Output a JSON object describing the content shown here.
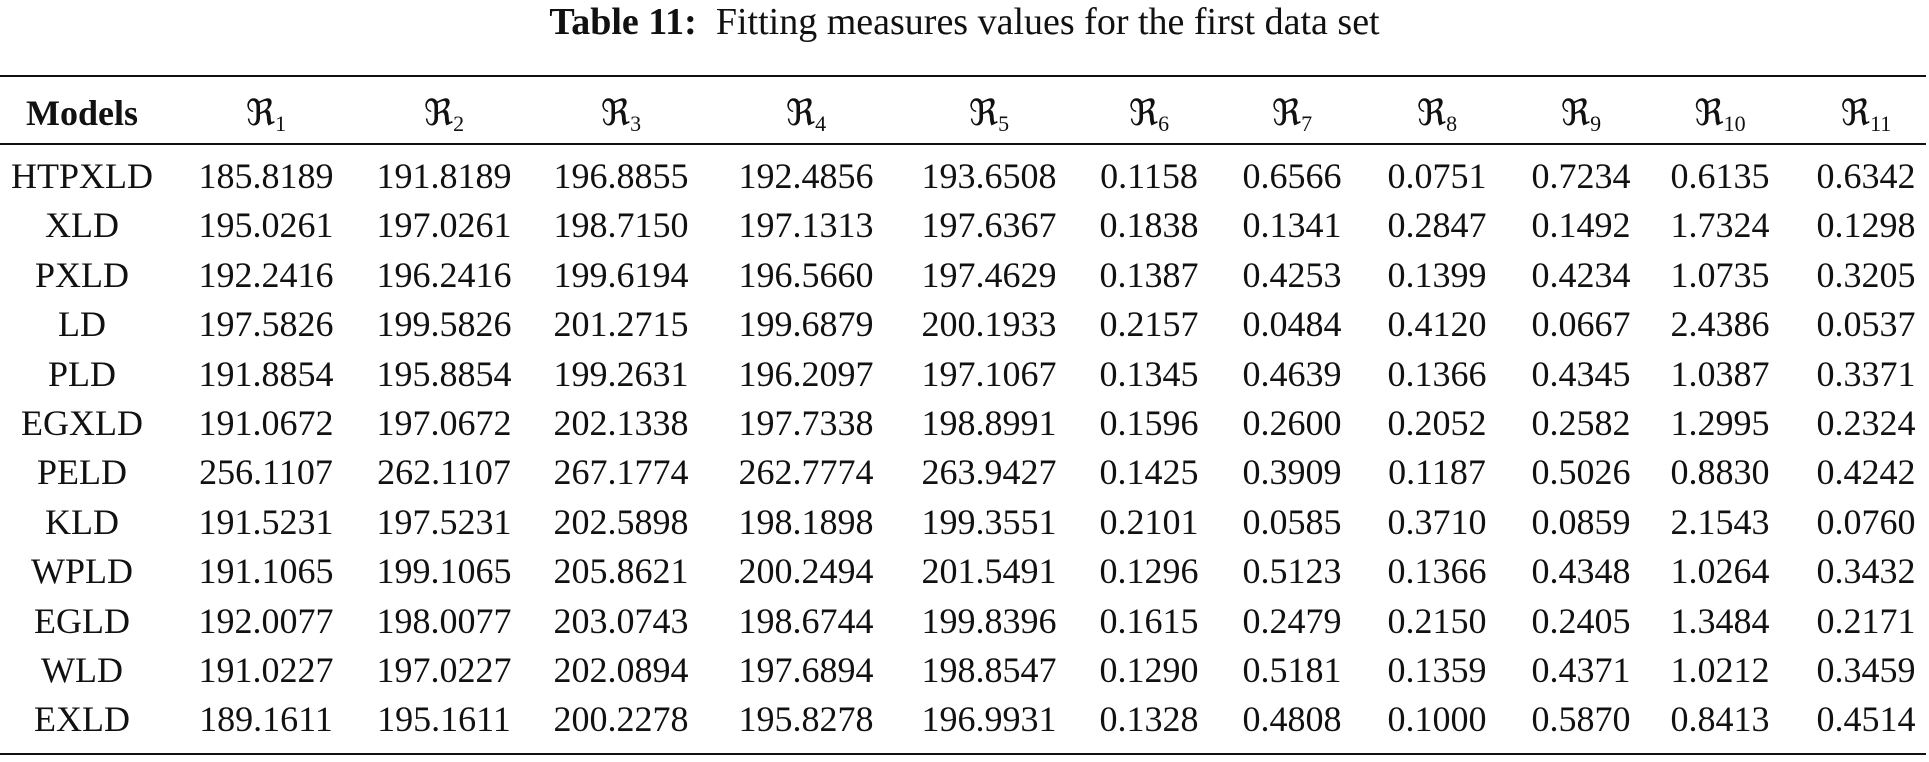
{
  "table": {
    "caption": {
      "label": "Table 11:",
      "text": "Fitting measures values for the first data set"
    },
    "header": [
      "Models",
      {
        "symbol": "ℜ",
        "sub": "1"
      },
      {
        "symbol": "ℜ",
        "sub": "2"
      },
      {
        "symbol": "ℜ",
        "sub": "3"
      },
      {
        "symbol": "ℜ",
        "sub": "4"
      },
      {
        "symbol": "ℜ",
        "sub": "5"
      },
      {
        "symbol": "ℜ",
        "sub": "6"
      },
      {
        "symbol": "ℜ",
        "sub": "7"
      },
      {
        "symbol": "ℜ",
        "sub": "8"
      },
      {
        "symbol": "ℜ",
        "sub": "9"
      },
      {
        "symbol": "ℜ",
        "sub": "10"
      },
      {
        "symbol": "ℜ",
        "sub": "11"
      }
    ],
    "rows": [
      [
        "HTPXLD",
        "185.8189",
        "191.8189",
        "196.8855",
        "192.4856",
        "193.6508",
        "0.1158",
        "0.6566",
        "0.0751",
        "0.7234",
        "0.6135",
        "0.6342"
      ],
      [
        "XLD",
        "195.0261",
        "197.0261",
        "198.7150",
        "197.1313",
        "197.6367",
        "0.1838",
        "0.1341",
        "0.2847",
        "0.1492",
        "1.7324",
        "0.1298"
      ],
      [
        "PXLD",
        "192.2416",
        "196.2416",
        "199.6194",
        "196.5660",
        "197.4629",
        "0.1387",
        "0.4253",
        "0.1399",
        "0.4234",
        "1.0735",
        "0.3205"
      ],
      [
        "LD",
        "197.5826",
        "199.5826",
        "201.2715",
        "199.6879",
        "200.1933",
        "0.2157",
        "0.0484",
        "0.4120",
        "0.0667",
        "2.4386",
        "0.0537"
      ],
      [
        "PLD",
        "191.8854",
        "195.8854",
        "199.2631",
        "196.2097",
        "197.1067",
        "0.1345",
        "0.4639",
        "0.1366",
        "0.4345",
        "1.0387",
        "0.3371"
      ],
      [
        "EGXLD",
        "191.0672",
        "197.0672",
        "202.1338",
        "197.7338",
        "198.8991",
        "0.1596",
        "0.2600",
        "0.2052",
        "0.2582",
        "1.2995",
        "0.2324"
      ],
      [
        "PELD",
        "256.1107",
        "262.1107",
        "267.1774",
        "262.7774",
        "263.9427",
        "0.1425",
        "0.3909",
        "0.1187",
        "0.5026",
        "0.8830",
        "0.4242"
      ],
      [
        "KLD",
        "191.5231",
        "197.5231",
        "202.5898",
        "198.1898",
        "199.3551",
        "0.2101",
        "0.0585",
        "0.3710",
        "0.0859",
        "2.1543",
        "0.0760"
      ],
      [
        "WPLD",
        "191.1065",
        "199.1065",
        "205.8621",
        "200.2494",
        "201.5491",
        "0.1296",
        "0.5123",
        "0.1366",
        "0.4348",
        "1.0264",
        "0.3432"
      ],
      [
        "EGLD",
        "192.0077",
        "198.0077",
        "203.0743",
        "198.6744",
        "199.8396",
        "0.1615",
        "0.2479",
        "0.2150",
        "0.2405",
        "1.3484",
        "0.2171"
      ],
      [
        "WLD",
        "191.0227",
        "197.0227",
        "202.0894",
        "197.6894",
        "198.8547",
        "0.1290",
        "0.5181",
        "0.1359",
        "0.4371",
        "1.0212",
        "0.3459"
      ],
      [
        "EXLD",
        "189.1611",
        "195.1611",
        "200.2278",
        "195.8278",
        "196.9931",
        "0.1328",
        "0.4808",
        "0.1000",
        "0.5870",
        "0.8413",
        "0.4514"
      ]
    ]
  }
}
